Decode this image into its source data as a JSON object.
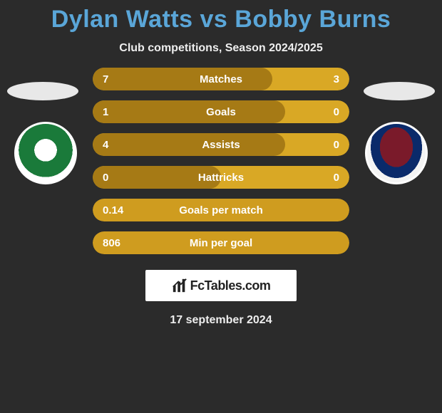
{
  "title_color": "#5aa6d8",
  "title_parts": {
    "player1": "Dylan Watts",
    "vs": "vs",
    "player2": "Bobby Burns"
  },
  "subtitle": "Club competitions, Season 2024/2025",
  "date": "17 september 2024",
  "logo_text": "FcTables.com",
  "bar_colors": {
    "left_dark": "#a67a15",
    "right_light": "#d9a825",
    "single": "#cf9c1f"
  },
  "rows": [
    {
      "label": "Matches",
      "left": "7",
      "right": "3",
      "left_width_pct": 70,
      "two_tone": true
    },
    {
      "label": "Goals",
      "left": "1",
      "right": "0",
      "left_width_pct": 75,
      "two_tone": true
    },
    {
      "label": "Assists",
      "left": "4",
      "right": "0",
      "left_width_pct": 75,
      "two_tone": true
    },
    {
      "label": "Hattricks",
      "left": "0",
      "right": "0",
      "left_width_pct": 50,
      "two_tone": true
    },
    {
      "label": "Goals per match",
      "left": "0.14",
      "right": "",
      "left_width_pct": 100,
      "two_tone": false
    },
    {
      "label": "Min per goal",
      "left": "806",
      "right": "",
      "left_width_pct": 100,
      "two_tone": false
    }
  ],
  "background_color": "#2b2b2b"
}
